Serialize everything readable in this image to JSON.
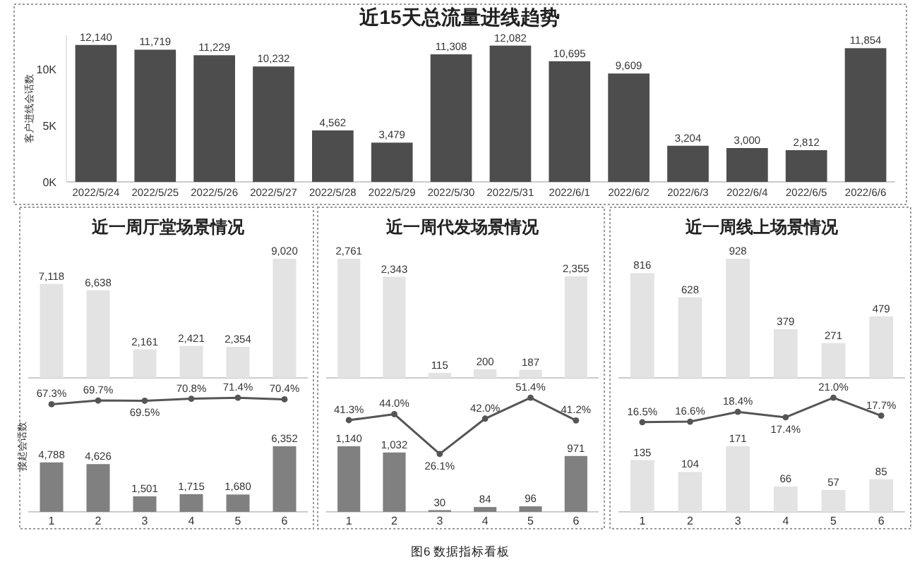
{
  "chart_data": [
    {
      "type": "bar",
      "title": "近15天总流量进线趋势",
      "ylabel": "客户进线会话数",
      "categories": [
        "2022/5/24",
        "2022/5/25",
        "2022/5/26",
        "2022/5/27",
        "2022/5/28",
        "2022/5/29",
        "2022/5/30",
        "2022/5/31",
        "2022/6/1",
        "2022/6/2",
        "2022/6/3",
        "2022/6/4",
        "2022/6/5",
        "2022/6/6"
      ],
      "values": [
        12140,
        11719,
        11229,
        10232,
        4562,
        3479,
        11308,
        12082,
        10695,
        9609,
        3204,
        3000,
        2812,
        11854
      ],
      "value_labels": [
        "12,140",
        "11,719",
        "11,229",
        "10,232",
        "4,562",
        "3,479",
        "11,308",
        "12,082",
        "10,695",
        "9,609",
        "3,204",
        "3,000",
        "2,812",
        "11,854"
      ],
      "color": "#4d4d4d",
      "ylim": [
        0,
        13000
      ],
      "yticks": [
        {
          "value": 0,
          "label": "0K"
        },
        {
          "value": 5000,
          "label": "5K"
        },
        {
          "value": 10000,
          "label": "10K"
        }
      ],
      "annotations": [
        "图6  数据指标看板"
      ]
    },
    {
      "type": "bar",
      "title": "近一周厅堂场景情况",
      "categories": [
        null,
        null,
        null,
        null,
        null,
        null
      ],
      "values": [
        7118,
        6638,
        2161,
        2421,
        2354,
        9020
      ],
      "value_labels": [
        "7,118",
        "6,638",
        "2,161",
        "2,421",
        "2,354",
        "9,020"
      ],
      "color": "#e3e3e3"
    },
    {
      "type": "bar",
      "ylabel": "接起会话数",
      "categories": [
        "1",
        "2",
        "3",
        "4",
        "5",
        "6"
      ],
      "values": [
        4788,
        4626,
        1501,
        1715,
        1680,
        6352
      ],
      "value_labels": [
        "4,788",
        "4,626",
        "1,501",
        "1,715",
        "1,680",
        "6,352"
      ],
      "color": "#808080"
    },
    {
      "type": "line",
      "categories": [
        null,
        null,
        null,
        null,
        null,
        null
      ],
      "marker": "circle",
      "color": "#555555",
      "values": [
        67.3,
        69.7,
        69.5,
        70.8,
        71.4,
        70.4
      ],
      "value_labels": [
        "67.3%",
        "69.7%",
        "69.5%",
        "70.8%",
        "71.4%",
        "70.4%"
      ]
    },
    {
      "type": "bar",
      "title": "近一周代发场景情况",
      "categories": [
        null,
        null,
        null,
        null,
        null,
        null
      ],
      "values": [
        2761,
        2343,
        115,
        200,
        187,
        2355
      ],
      "value_labels": [
        "2,761",
        "2,343",
        "115",
        "200",
        "187",
        "2,355"
      ],
      "color": "#e3e3e3"
    },
    {
      "type": "bar",
      "categories": [
        "1",
        "2",
        "3",
        "4",
        "5",
        "6"
      ],
      "values": [
        1140,
        1032,
        30,
        84,
        96,
        971
      ],
      "value_labels": [
        "1,140",
        "1,032",
        "30",
        "84",
        "96",
        "971"
      ],
      "color": "#808080"
    },
    {
      "type": "line",
      "categories": [
        null,
        null,
        null,
        null,
        null,
        null
      ],
      "marker": "circle",
      "color": "#555555",
      "values": [
        41.3,
        44.0,
        26.1,
        42.0,
        51.4,
        41.2
      ],
      "value_labels": [
        "41.3%",
        "44.0%",
        "26.1%",
        "42.0%",
        "51.4%",
        "41.2%"
      ]
    },
    {
      "type": "bar",
      "title": "近一周线上场景情况",
      "categories": [
        null,
        null,
        null,
        null,
        null,
        null
      ],
      "values": [
        816,
        628,
        928,
        379,
        271,
        479
      ],
      "value_labels": [
        "816",
        "628",
        "928",
        "379",
        "271",
        "479"
      ],
      "color": "#e3e3e3"
    },
    {
      "type": "bar",
      "categories": [
        "1",
        "2",
        "3",
        "4",
        "5",
        "6"
      ],
      "values": [
        135,
        104,
        171,
        66,
        57,
        85
      ],
      "value_labels": [
        "135",
        "104",
        "171",
        "66",
        "57",
        "85"
      ],
      "color": "#e3e3e3"
    },
    {
      "type": "line",
      "categories": [
        null,
        null,
        null,
        null,
        null,
        null
      ],
      "marker": "circle",
      "color": "#555555",
      "values": [
        16.5,
        16.6,
        18.4,
        17.4,
        21.0,
        17.7
      ],
      "value_labels": [
        "16.5%",
        "16.6%",
        "18.4%",
        "17.4%",
        "21.0%",
        "17.7%"
      ]
    }
  ]
}
